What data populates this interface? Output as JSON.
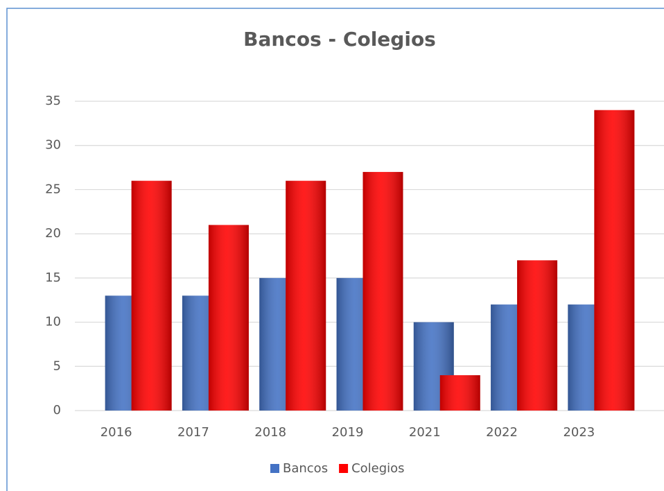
{
  "chart_data": {
    "type": "bar",
    "title": "Bancos - Colegios",
    "categories": [
      "2016",
      "2017",
      "2018",
      "2019",
      "2021",
      "2022",
      "2023"
    ],
    "series": [
      {
        "name": "Bancos",
        "color": "#4472c4",
        "values": [
          13,
          13,
          15,
          15,
          10,
          12,
          12
        ]
      },
      {
        "name": "Colegios",
        "color": "#ff0000",
        "values": [
          26,
          21,
          26,
          27,
          4,
          17,
          34
        ]
      }
    ],
    "ylim": [
      0,
      35
    ],
    "yticks": [
      0,
      5,
      10,
      15,
      20,
      25,
      30,
      35
    ],
    "grid": true,
    "legend": "bottom"
  }
}
